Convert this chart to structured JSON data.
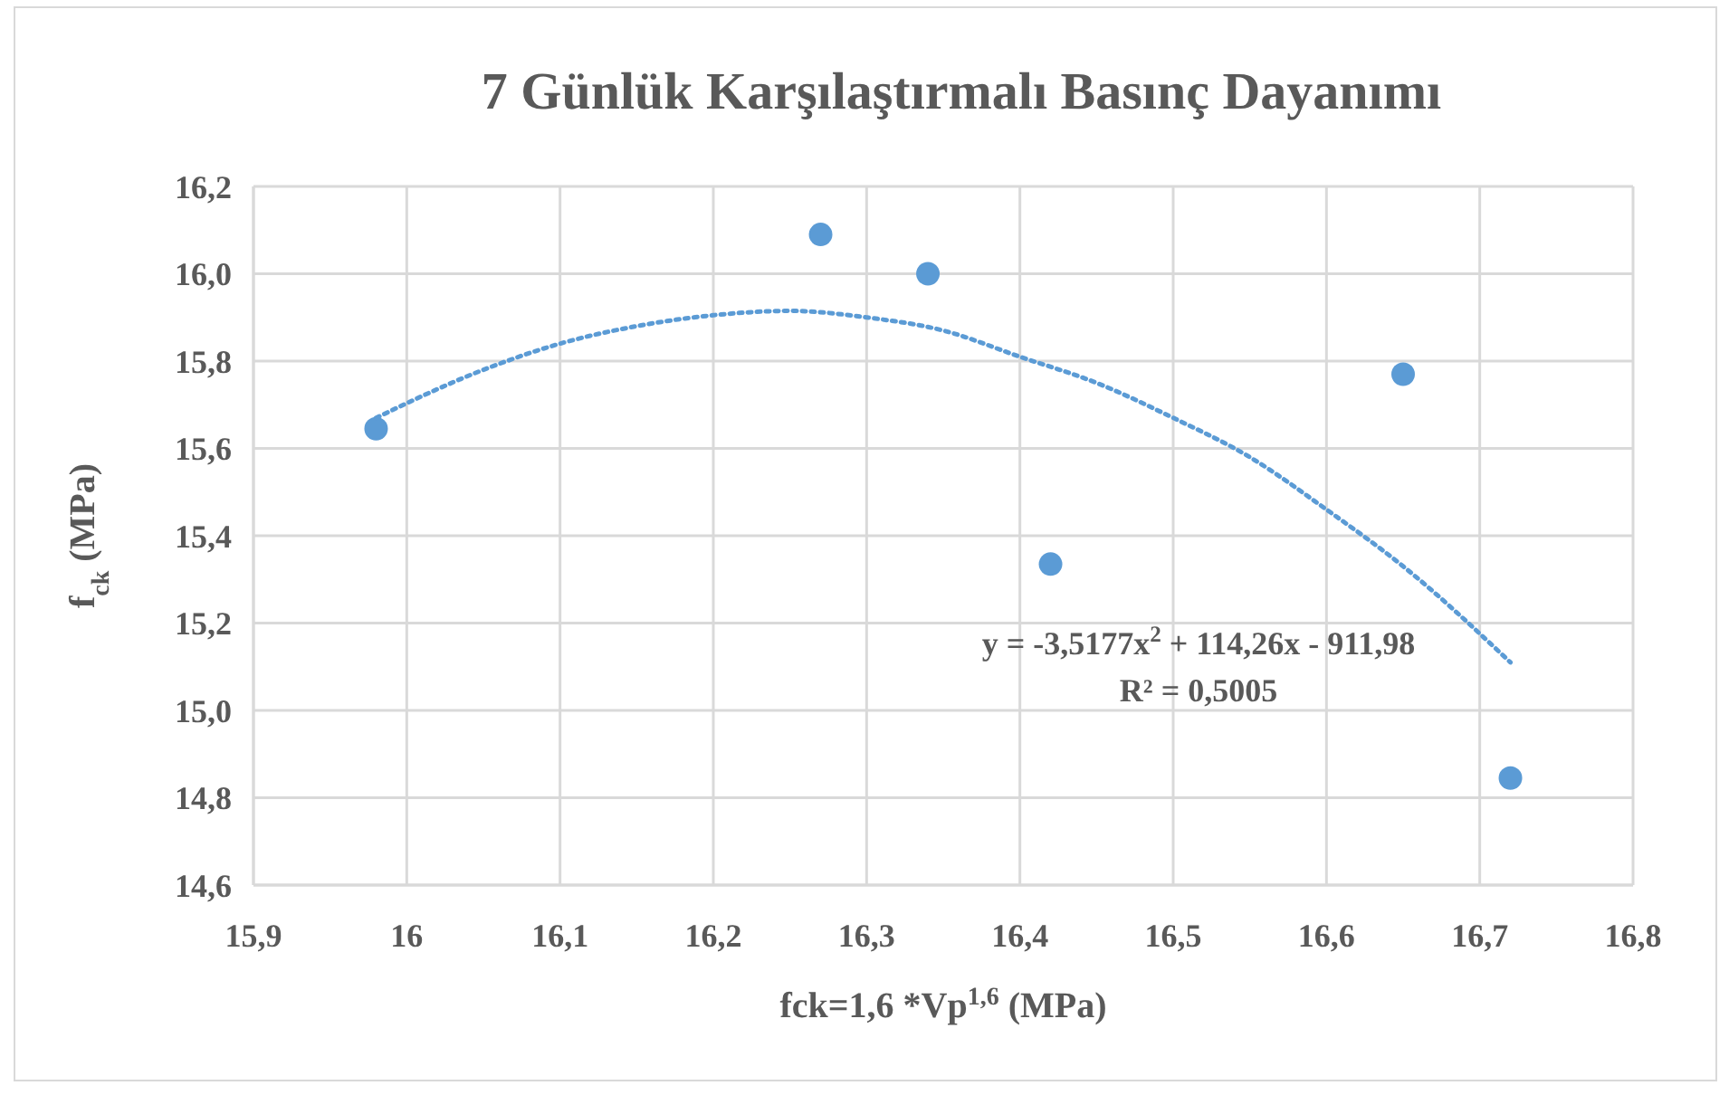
{
  "chart_data": {
    "type": "scatter",
    "title": "7 Günlük Karşılaştırmalı Basınç Dayanımı",
    "xlabel": "fck=1,6 *Vp$^{1,6}$ (MPa)",
    "ylabel": "f$_{ck}$ (MPa)",
    "xlim": [
      15.9,
      16.8
    ],
    "ylim": [
      14.6,
      16.2
    ],
    "xticks": [
      {
        "value": 15.9,
        "label": "15,9"
      },
      16,
      {
        "value": 16.1,
        "label": "16,1"
      },
      {
        "value": 16.2,
        "label": "16,2"
      },
      {
        "value": 16.3,
        "label": "16,3"
      },
      {
        "value": 16.4,
        "label": "16,4"
      },
      {
        "value": 16.5,
        "label": "16,5"
      },
      {
        "value": 16.6,
        "label": "16,6"
      },
      {
        "value": 16.7,
        "label": "16,7"
      },
      {
        "value": 16.8,
        "label": "16,8"
      }
    ],
    "yticks": [
      {
        "value": 14.6,
        "label": "14,6"
      },
      {
        "value": 14.8,
        "label": "14,8"
      },
      {
        "value": 15.0,
        "label": "15,0"
      },
      {
        "value": 15.2,
        "label": "15,2"
      },
      {
        "value": 15.4,
        "label": "15,4"
      },
      {
        "value": 15.6,
        "label": "15,6"
      },
      {
        "value": 15.8,
        "label": "15,8"
      },
      {
        "value": 16.0,
        "label": "16,0"
      },
      {
        "value": 16.2,
        "label": "16,2"
      }
    ],
    "grid": true,
    "marker": "circle",
    "series": [
      {
        "color": "#5b9bd5",
        "x": [
          15.98,
          16.27,
          16.34,
          16.42,
          16.65,
          16.72
        ],
        "values": [
          15.645,
          16.09,
          16.0,
          15.335,
          15.77,
          14.845
        ]
      },
      {
        "type": "line",
        "color": "#5b9bd5",
        "line_style": "dotted",
        "marker": "none",
        "x": [
          15.98,
          16.05,
          16.1,
          16.15,
          16.2,
          16.25,
          16.3,
          16.35,
          16.4,
          16.45,
          16.5,
          16.55,
          16.6,
          16.65,
          16.72
        ],
        "values": [
          15.67,
          15.78,
          15.84,
          15.88,
          15.905,
          15.915,
          15.9,
          15.87,
          15.81,
          15.75,
          15.67,
          15.58,
          15.46,
          15.33,
          15.11
        ]
      }
    ],
    "annotations": [
      "y = -3,5177x$^{2}$ + 114,26x - 911,98",
      "R² = 0,5005"
    ]
  }
}
